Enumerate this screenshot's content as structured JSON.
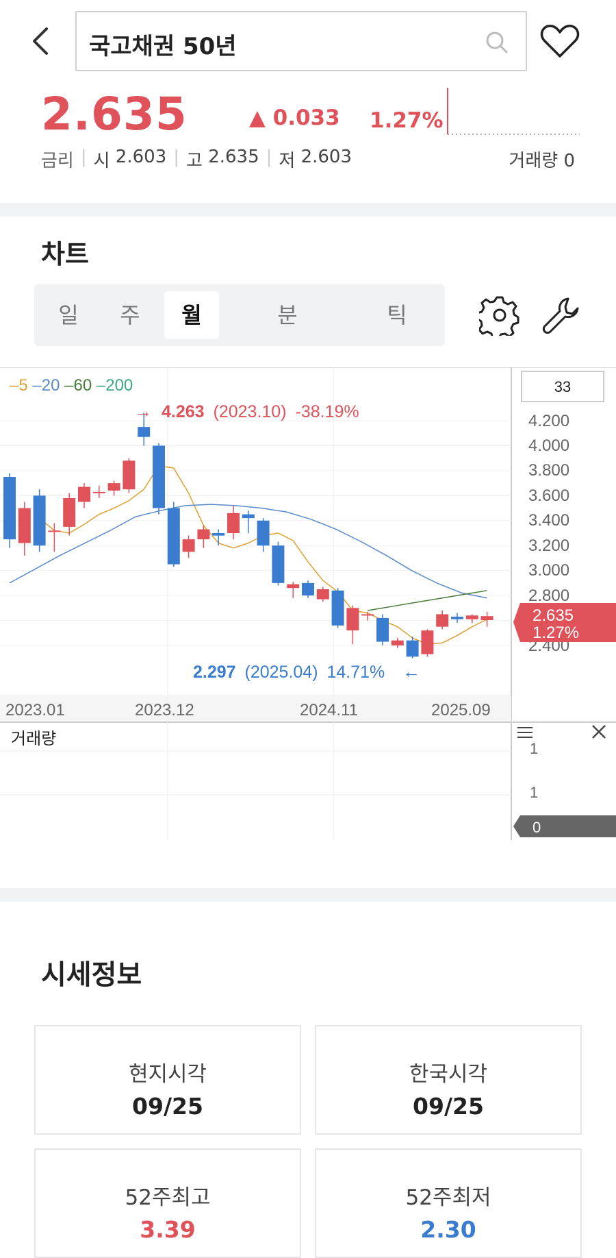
{
  "header": {
    "title": "국고채권 50년",
    "price": "2.635",
    "change": "▲ 0.033",
    "change_pct": "1.27%",
    "rate_label": "금리",
    "open_label": "시",
    "open": "2.603",
    "high_label": "고",
    "high": "2.635",
    "low_label": "저",
    "low": "2.603",
    "volume_label": "거래량",
    "volume": "0"
  },
  "chart_section": {
    "title": "차트",
    "tabs": [
      {
        "label": "일",
        "active": false
      },
      {
        "label": "주",
        "active": false
      },
      {
        "label": "월",
        "active": true
      },
      {
        "label": "분",
        "active": false
      },
      {
        "label": "틱",
        "active": false
      }
    ]
  },
  "colors": {
    "up": "#e0525a",
    "down": "#3a7cd0",
    "ma5": "#e0a030",
    "ma20": "#5a8ac8",
    "ma60": "#4a7a3a",
    "ma200": "#3aaa80"
  },
  "chart_data": {
    "type": "candlestick",
    "legend": [
      "5",
      "20",
      "60",
      "200"
    ],
    "count_box": "33",
    "y_ticks": [
      "4.200",
      "4.000",
      "3.800",
      "3.600",
      "3.400",
      "3.200",
      "3.000",
      "2.800",
      "2.400"
    ],
    "ylim": [
      2.2,
      4.3
    ],
    "x_ticks": [
      "2023.01",
      "2023.12",
      "2024.11",
      "2025.09"
    ],
    "current": {
      "price": "2.635",
      "pct": "1.27%"
    },
    "max_annotation": {
      "value": "4.263",
      "period": "(2023.10)",
      "pct": "-38.19%"
    },
    "min_annotation": {
      "value": "2.297",
      "period": "(2025.04)",
      "pct": "14.71%"
    },
    "candles": [
      {
        "o": 3.75,
        "c": 3.25,
        "h": 3.78,
        "l": 3.18
      },
      {
        "o": 3.22,
        "c": 3.5,
        "h": 3.55,
        "l": 3.12
      },
      {
        "o": 3.6,
        "c": 3.2,
        "h": 3.65,
        "l": 3.15
      },
      {
        "o": 3.32,
        "c": 3.32,
        "h": 3.38,
        "l": 3.15
      },
      {
        "o": 3.35,
        "c": 3.58,
        "h": 3.62,
        "l": 3.28
      },
      {
        "o": 3.55,
        "c": 3.67,
        "h": 3.7,
        "l": 3.5
      },
      {
        "o": 3.63,
        "c": 3.63,
        "h": 3.68,
        "l": 3.58
      },
      {
        "o": 3.64,
        "c": 3.7,
        "h": 3.72,
        "l": 3.6
      },
      {
        "o": 3.65,
        "c": 3.88,
        "h": 3.9,
        "l": 3.62
      },
      {
        "o": 4.15,
        "c": 4.07,
        "h": 4.263,
        "l": 4.0
      },
      {
        "o": 4.0,
        "c": 3.5,
        "h": 4.02,
        "l": 3.45
      },
      {
        "o": 3.5,
        "c": 3.05,
        "h": 3.55,
        "l": 3.03
      },
      {
        "o": 3.15,
        "c": 3.25,
        "h": 3.28,
        "l": 3.1
      },
      {
        "o": 3.25,
        "c": 3.33,
        "h": 3.36,
        "l": 3.18
      },
      {
        "o": 3.3,
        "c": 3.28,
        "h": 3.33,
        "l": 3.2
      },
      {
        "o": 3.3,
        "c": 3.46,
        "h": 3.52,
        "l": 3.25
      },
      {
        "o": 3.45,
        "c": 3.42,
        "h": 3.48,
        "l": 3.3
      },
      {
        "o": 3.4,
        "c": 3.2,
        "h": 3.42,
        "l": 3.15
      },
      {
        "o": 3.2,
        "c": 2.9,
        "h": 3.23,
        "l": 2.88
      },
      {
        "o": 2.86,
        "c": 2.89,
        "h": 2.91,
        "l": 2.78
      },
      {
        "o": 2.9,
        "c": 2.8,
        "h": 2.92,
        "l": 2.78
      },
      {
        "o": 2.77,
        "c": 2.85,
        "h": 2.87,
        "l": 2.75
      },
      {
        "o": 2.84,
        "c": 2.56,
        "h": 2.86,
        "l": 2.54
      },
      {
        "o": 2.52,
        "c": 2.7,
        "h": 2.72,
        "l": 2.41
      },
      {
        "o": 2.65,
        "c": 2.65,
        "h": 2.67,
        "l": 2.6
      },
      {
        "o": 2.62,
        "c": 2.43,
        "h": 2.65,
        "l": 2.4
      },
      {
        "o": 2.4,
        "c": 2.44,
        "h": 2.46,
        "l": 2.38
      },
      {
        "o": 2.44,
        "c": 2.31,
        "h": 2.47,
        "l": 2.297
      },
      {
        "o": 2.33,
        "c": 2.52,
        "h": 2.53,
        "l": 2.31
      },
      {
        "o": 2.55,
        "c": 2.65,
        "h": 2.68,
        "l": 2.53
      },
      {
        "o": 2.63,
        "c": 2.61,
        "h": 2.66,
        "l": 2.58
      },
      {
        "o": 2.61,
        "c": 2.64,
        "h": 2.65,
        "l": 2.58
      },
      {
        "o": 2.603,
        "c": 2.635,
        "h": 2.67,
        "l": 2.55
      }
    ],
    "ma5": [
      3.42,
      3.32,
      3.3,
      3.37,
      3.45,
      3.5,
      3.56,
      3.65,
      3.84,
      3.82,
      3.62,
      3.36,
      3.22,
      3.18,
      3.22,
      3.28,
      3.3,
      3.24,
      3.07,
      2.92,
      2.83,
      2.68,
      2.66,
      2.6,
      2.55,
      2.46,
      2.41,
      2.42,
      2.48,
      2.55,
      2.61
    ],
    "ma20": [
      2.9,
      3.01,
      3.12,
      3.22,
      3.32,
      3.43,
      3.48,
      3.52,
      3.53,
      3.52,
      3.5,
      3.47,
      3.41,
      3.33,
      3.23,
      3.12,
      3.0,
      2.9,
      2.82,
      2.78
    ],
    "ma60": [
      2.68,
      2.7,
      2.72,
      2.74,
      2.76,
      2.78,
      2.8,
      2.82,
      2.84
    ],
    "volume_section": {
      "label": "거래량",
      "ticks": [
        "1",
        "1"
      ],
      "current": "0"
    }
  },
  "market_info": {
    "title": "시세정보",
    "cards": [
      {
        "label": "현지시각",
        "value": "09/25"
      },
      {
        "label": "한국시각",
        "value": "09/25"
      },
      {
        "label": "52주최고",
        "value": "3.39"
      },
      {
        "label": "52주최저",
        "value": "2.30"
      }
    ]
  }
}
